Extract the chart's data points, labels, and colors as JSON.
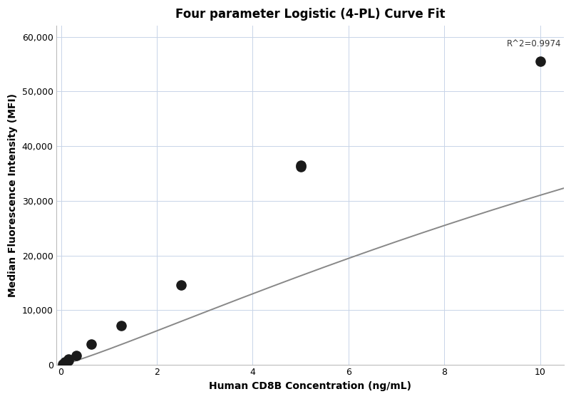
{
  "title": "Four parameter Logistic (4-PL) Curve Fit",
  "xlabel": "Human CD8B Concentration (ng/mL)",
  "ylabel": "Median Fluorescence Intensity (MFI)",
  "scatter_x": [
    0.039,
    0.078,
    0.156,
    0.156,
    0.313,
    0.625,
    1.25,
    2.5,
    5.0,
    5.0,
    10.0
  ],
  "scatter_y": [
    150,
    500,
    800,
    1100,
    1700,
    3800,
    7200,
    14600,
    36200,
    36500,
    55500
  ],
  "xlim": [
    -0.1,
    10.5
  ],
  "ylim": [
    0,
    62000
  ],
  "yticks": [
    0,
    10000,
    20000,
    30000,
    40000,
    50000,
    60000
  ],
  "xticks": [
    0,
    2,
    4,
    6,
    8,
    10
  ],
  "r_squared": "R^2=0.9974",
  "r2_x": 9.3,
  "r2_y": 59500,
  "dot_color": "#1a1a1a",
  "dot_size": 90,
  "line_color": "#888888",
  "line_width": 1.4,
  "background_color": "#ffffff",
  "grid_color": "#c8d4e8",
  "title_fontsize": 12,
  "label_fontsize": 10,
  "4pl_A": 0,
  "4pl_D": 120000,
  "4pl_C": 25.0,
  "4pl_B": 1.15
}
